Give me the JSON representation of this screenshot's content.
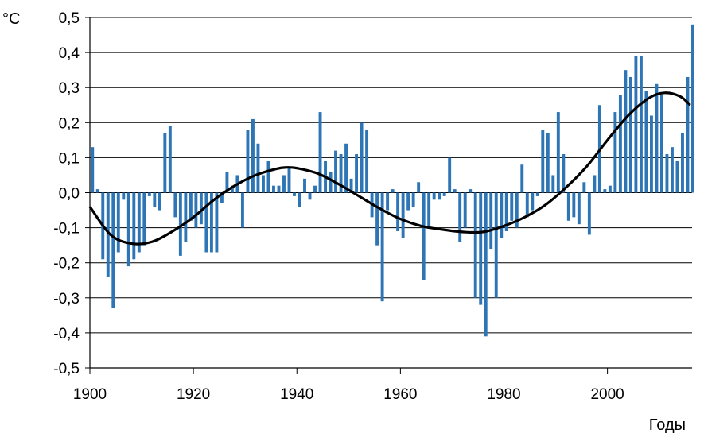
{
  "chart_data": {
    "type": "bar",
    "y_unit": "°C",
    "xlabel": "Годы",
    "ylabel": "°C",
    "xlim": [
      1900,
      2016
    ],
    "ylim": [
      -0.5,
      0.5
    ],
    "grid": true,
    "x_ticks": [
      "1900",
      "1920",
      "1940",
      "1960",
      "1980",
      "2000"
    ],
    "y_ticks": [
      "0,5",
      "0,4",
      "0,3",
      "0,2",
      "0,1",
      "0,0",
      "-0,1",
      "-0,2",
      "-0,3",
      "-0,4",
      "-0,5"
    ],
    "bar_color": "#2e75b6",
    "trend_color": "#000000",
    "anomalies": {
      "start_year": 1900,
      "values": [
        0.13,
        0.01,
        -0.19,
        -0.24,
        -0.33,
        -0.17,
        -0.02,
        -0.21,
        -0.19,
        -0.17,
        -0.15,
        -0.01,
        -0.04,
        -0.05,
        0.17,
        0.19,
        -0.07,
        -0.18,
        -0.14,
        -0.08,
        -0.1,
        -0.09,
        -0.17,
        -0.17,
        -0.17,
        -0.03,
        0.06,
        0.02,
        0.05,
        -0.1,
        0.18,
        0.21,
        0.14,
        0.05,
        0.09,
        0.02,
        0.02,
        0.05,
        0.07,
        -0.01,
        -0.04,
        0.04,
        -0.02,
        0.02,
        0.23,
        0.09,
        0.06,
        0.12,
        0.11,
        0.14,
        0.04,
        0.11,
        0.2,
        0.18,
        -0.07,
        -0.15,
        -0.31,
        -0.05,
        0.01,
        -0.11,
        -0.13,
        -0.05,
        -0.04,
        0.03,
        -0.25,
        -0.1,
        -0.02,
        -0.02,
        -0.01,
        0.1,
        0.01,
        -0.14,
        -0.1,
        0.01,
        -0.3,
        -0.32,
        -0.41,
        -0.16,
        -0.3,
        -0.13,
        -0.11,
        -0.08,
        -0.1,
        0.08,
        -0.07,
        -0.05,
        -0.01,
        0.18,
        0.17,
        0.05,
        0.23,
        0.11,
        -0.08,
        -0.07,
        -0.09,
        0.03,
        -0.12,
        0.05,
        0.25,
        0.01,
        0.02,
        0.23,
        0.28,
        0.35,
        0.33,
        0.39,
        0.39,
        0.29,
        0.22,
        0.31,
        0.28,
        0.11,
        0.13,
        0.09,
        0.17,
        0.33,
        0.48
      ]
    },
    "trend": {
      "x": [
        1900,
        1904,
        1908,
        1912,
        1916,
        1920,
        1924,
        1928,
        1932,
        1936,
        1938,
        1940,
        1944,
        1948,
        1952,
        1956,
        1960,
        1964,
        1968,
        1972,
        1976,
        1980,
        1984,
        1988,
        1992,
        1996,
        2000,
        2004,
        2008,
        2011,
        2014,
        2016
      ],
      "y": [
        -0.04,
        -0.12,
        -0.145,
        -0.14,
        -0.11,
        -0.07,
        -0.02,
        0.02,
        0.05,
        0.068,
        0.072,
        0.07,
        0.055,
        0.025,
        -0.01,
        -0.045,
        -0.075,
        -0.095,
        -0.105,
        -0.112,
        -0.112,
        -0.095,
        -0.07,
        -0.035,
        0.015,
        0.075,
        0.15,
        0.22,
        0.27,
        0.285,
        0.275,
        0.25
      ]
    }
  }
}
